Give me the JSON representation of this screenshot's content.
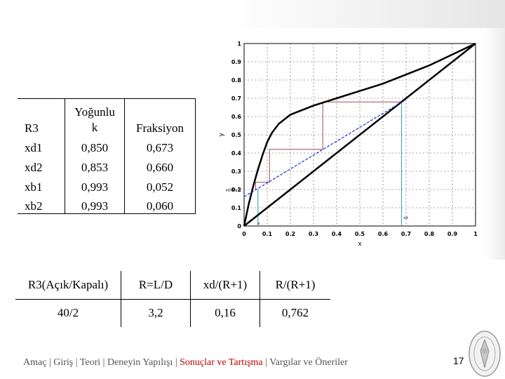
{
  "table1": {
    "headers": [
      "R3",
      "Yoğunlu\nk",
      "Fraksiyon"
    ],
    "rows": [
      {
        "label": "xd1",
        "density": "0,850",
        "fraction": "0,673"
      },
      {
        "label": "xd2",
        "density": "0,853",
        "fraction": "0,660"
      },
      {
        "label": "xb1",
        "density": "0,993",
        "fraction": "0,052"
      },
      {
        "label": "xb2",
        "density": "0,993",
        "fraction": "0,060"
      }
    ]
  },
  "table2": {
    "headers": [
      "R3(Açık/Kapalı)",
      "R=L/D",
      "xd/(R+1)",
      "R/(R+1)"
    ],
    "values": [
      "40/2",
      "3,2",
      "0,16",
      "0,762"
    ]
  },
  "footer": {
    "items": [
      "Amaç",
      "Giriş",
      "Teori",
      "Deneyin Yapılışı",
      "Sonuçlar ve Tartışma",
      "Vargılar ve Öneriler"
    ],
    "active": "Sonuçlar ve Tartışma",
    "separator": "|"
  },
  "page_number": "17",
  "colors": {
    "active": "#c00000",
    "step_lines": "#a05050",
    "operating_line": "#2233cc",
    "marker_lines": "#20a0a0"
  },
  "chart_data": {
    "type": "line",
    "xlabel": "x",
    "ylabel": "y",
    "xlim": [
      0,
      1
    ],
    "ylim": [
      0,
      1
    ],
    "xticks": [
      "0",
      "0.1",
      "0.2",
      "0.3",
      "0.4",
      "0.5",
      "0.6",
      "0.7",
      "0.8",
      "0.9",
      "1"
    ],
    "yticks": [
      "0",
      "0.1",
      "0.2",
      "0.3",
      "0.4",
      "0.5",
      "0.6",
      "0.7",
      "0.8",
      "0.9",
      "1"
    ],
    "grid": true,
    "series": [
      {
        "kind": "equilibrium",
        "x": [
          0,
          0.02,
          0.04,
          0.06,
          0.08,
          0.1,
          0.12,
          0.15,
          0.2,
          0.3,
          0.4,
          0.5,
          0.6,
          0.7,
          0.8,
          0.9,
          1.0
        ],
        "y": [
          0,
          0.12,
          0.22,
          0.31,
          0.39,
          0.46,
          0.51,
          0.56,
          0.61,
          0.66,
          0.7,
          0.74,
          0.78,
          0.83,
          0.88,
          0.94,
          1.0
        ]
      },
      {
        "kind": "diagonal",
        "x": [
          0,
          1
        ],
        "y": [
          0,
          1
        ]
      },
      {
        "kind": "operating",
        "x": [
          0,
          0.68
        ],
        "y": [
          0.16,
          0.678
        ]
      },
      {
        "kind": "steps",
        "x": [
          0.68,
          0.34,
          0.34,
          0.11,
          0.11,
          0.05,
          0.05
        ],
        "y": [
          0.68,
          0.68,
          0.42,
          0.42,
          0.24,
          0.24,
          0.2
        ]
      }
    ],
    "annotations": [
      {
        "text": "xd/(R+1)",
        "x": 0,
        "y": 0.16
      },
      {
        "text": "xd",
        "x": 0.68,
        "y": 0.03
      },
      {
        "text": "x",
        "x": 0.05,
        "y": 0.0
      }
    ],
    "markers": {
      "x": [
        0.06,
        0.68
      ],
      "y": 0.16
    }
  }
}
